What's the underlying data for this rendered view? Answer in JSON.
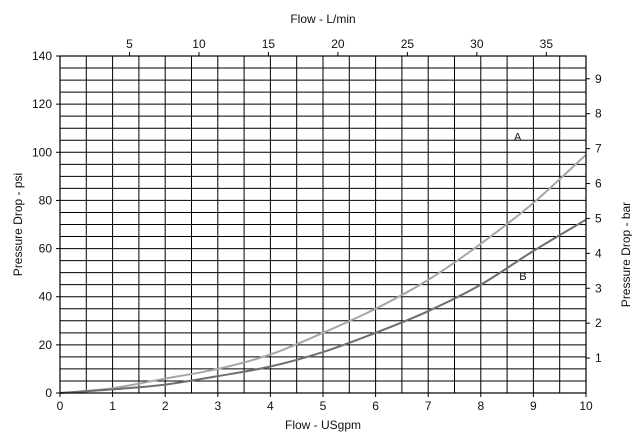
{
  "chart_data": {
    "type": "line",
    "title": "",
    "xlabel": "Flow - USgpm",
    "ylabel": "Pressure Drop - psi",
    "x2label": "Flow - L/min",
    "y2label": "Pressure Drop - bar",
    "xlim": [
      0,
      10
    ],
    "ylim": [
      0,
      140
    ],
    "x_ticks": [
      0,
      1,
      2,
      3,
      4,
      5,
      6,
      7,
      8,
      9,
      10
    ],
    "y_ticks": [
      0,
      20,
      40,
      60,
      80,
      100,
      120,
      140
    ],
    "x2_ticks": [
      5,
      10,
      15,
      20,
      25,
      30,
      35
    ],
    "y2_ticks": [
      1,
      2,
      3,
      4,
      5,
      6,
      7,
      8,
      9
    ],
    "grid": true,
    "x_minor_step": 0.5,
    "y_minor_step": 5,
    "series": [
      {
        "name": "A",
        "color": "#a6a6a6",
        "x": [
          0,
          1,
          2,
          3,
          4,
          5,
          6,
          7,
          8,
          9,
          10
        ],
        "values": [
          0,
          2,
          6,
          10,
          16,
          25,
          35,
          47,
          62,
          79,
          99
        ],
        "label_at": [
          8.7,
          105
        ]
      },
      {
        "name": "B",
        "color": "#6e6e6e",
        "x": [
          0,
          1,
          2,
          3,
          4,
          5,
          6,
          7,
          8,
          9,
          10
        ],
        "values": [
          0,
          1.5,
          3.5,
          7,
          11,
          17,
          25,
          34,
          45,
          59,
          72
        ],
        "label_at": [
          8.8,
          47
        ]
      }
    ]
  }
}
